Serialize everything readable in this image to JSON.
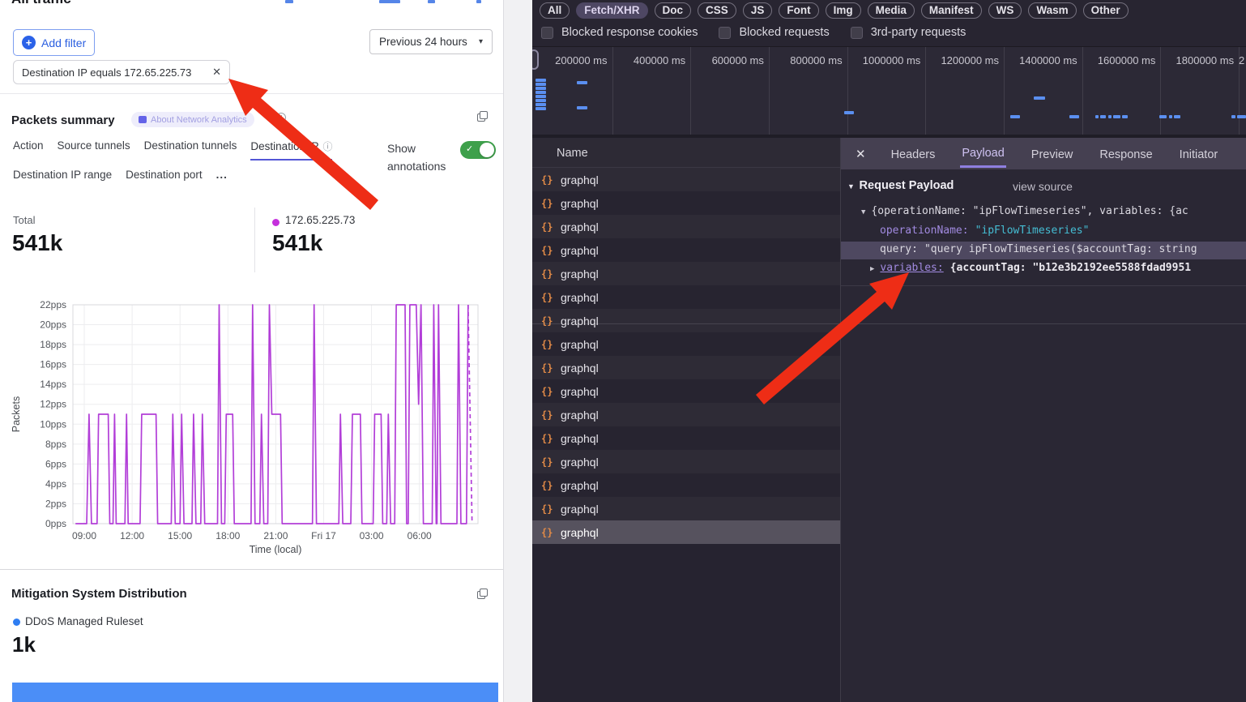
{
  "left": {
    "title": "All traffic",
    "add_filter": "Add filter",
    "time_range": "Previous 24 hours",
    "filter_chip": "Destination IP equals 172.65.225.73",
    "summary": {
      "heading": "Packets summary",
      "badge": "About Network Analytics",
      "tabs_row1": [
        "Action",
        "Source tunnels",
        "Destination tunnels",
        "Destination IP"
      ],
      "tabs_row2": [
        "Destination IP range",
        "Destination port",
        "..."
      ],
      "active_tab": "Destination IP",
      "show_annotations": "Show annotations"
    },
    "stats": {
      "total_label": "Total",
      "total_value": "541k",
      "series_label": "172.65.225.73",
      "series_value": "541k"
    },
    "mitigation": {
      "heading": "Mitigation System Distribution",
      "legend": "DDoS Managed Ruleset",
      "value": "1k"
    }
  },
  "chart_data": [
    {
      "type": "line",
      "title": "Packets summary",
      "ylabel": "Packets",
      "xlabel": "Time (local)",
      "ylim": [
        0,
        22
      ],
      "ytick_step": 2,
      "ytick_suffix": "pps",
      "xticks": [
        {
          "t": 1,
          "label": "09:00"
        },
        {
          "t": 4,
          "label": "12:00"
        },
        {
          "t": 7,
          "label": "15:00"
        },
        {
          "t": 10,
          "label": "18:00"
        },
        {
          "t": 13,
          "label": "21:00"
        },
        {
          "t": 16,
          "label": "Fri 17"
        },
        {
          "t": 19,
          "label": "03:00"
        },
        {
          "t": 22,
          "label": "06:00"
        }
      ],
      "series": [
        {
          "name": "172.65.225.73",
          "total": "541k",
          "color": "#b23ed8",
          "points": [
            [
              0.45,
              0
            ],
            [
              1.15,
              0
            ],
            [
              1.3,
              11
            ],
            [
              1.45,
              0
            ],
            [
              1.8,
              0
            ],
            [
              1.9,
              11
            ],
            [
              2.5,
              11
            ],
            [
              2.6,
              0
            ],
            [
              2.8,
              0
            ],
            [
              2.9,
              11
            ],
            [
              3.0,
              0
            ],
            [
              3.55,
              0
            ],
            [
              3.65,
              11
            ],
            [
              3.75,
              0
            ],
            [
              4.5,
              0
            ],
            [
              4.6,
              11
            ],
            [
              5.5,
              11
            ],
            [
              5.6,
              0
            ],
            [
              6.45,
              0
            ],
            [
              6.55,
              11
            ],
            [
              6.7,
              0
            ],
            [
              7.0,
              0
            ],
            [
              7.1,
              11
            ],
            [
              7.25,
              0
            ],
            [
              7.75,
              0
            ],
            [
              7.85,
              11
            ],
            [
              8.0,
              0
            ],
            [
              8.3,
              0
            ],
            [
              8.4,
              11
            ],
            [
              8.55,
              0
            ],
            [
              9.35,
              0
            ],
            [
              9.45,
              22
            ],
            [
              9.6,
              0
            ],
            [
              9.8,
              0
            ],
            [
              9.9,
              11
            ],
            [
              10.3,
              11
            ],
            [
              10.4,
              0
            ],
            [
              11.45,
              0
            ],
            [
              11.55,
              22
            ],
            [
              11.7,
              0
            ],
            [
              12.0,
              0
            ],
            [
              12.1,
              11
            ],
            [
              12.25,
              0
            ],
            [
              12.5,
              0
            ],
            [
              12.6,
              22
            ],
            [
              12.75,
              11
            ],
            [
              13.3,
              11
            ],
            [
              13.4,
              0
            ],
            [
              15.3,
              0
            ],
            [
              15.4,
              22
            ],
            [
              15.55,
              0
            ],
            [
              16.95,
              0
            ],
            [
              17.05,
              11
            ],
            [
              17.2,
              0
            ],
            [
              17.7,
              0
            ],
            [
              17.8,
              11
            ],
            [
              18.3,
              11
            ],
            [
              18.4,
              0
            ],
            [
              19.1,
              0
            ],
            [
              19.2,
              11
            ],
            [
              19.6,
              11
            ],
            [
              19.7,
              0
            ],
            [
              19.95,
              0
            ],
            [
              20.05,
              11
            ],
            [
              20.2,
              0
            ],
            [
              20.45,
              0
            ],
            [
              20.55,
              22
            ],
            [
              21.1,
              22
            ],
            [
              21.2,
              0
            ],
            [
              21.3,
              0
            ],
            [
              21.4,
              22
            ],
            [
              21.8,
              22
            ],
            [
              21.95,
              12
            ],
            [
              22.1,
              22
            ],
            [
              22.25,
              0
            ],
            [
              22.8,
              0
            ],
            [
              22.9,
              22
            ],
            [
              23.05,
              0
            ],
            [
              23.1,
              0
            ],
            [
              23.2,
              22
            ],
            [
              23.35,
              0
            ],
            [
              24.35,
              0
            ],
            [
              24.45,
              22
            ],
            [
              24.6,
              0
            ],
            [
              24.95,
              0
            ],
            [
              25.05,
              22
            ]
          ],
          "dashed_points": [
            [
              25.05,
              22
            ],
            [
              25.3,
              0
            ]
          ]
        }
      ]
    },
    {
      "type": "bar",
      "title": "Mitigation System Distribution",
      "categories": [
        "DDoS Managed Ruleset"
      ],
      "values": [
        1000
      ],
      "display_values": [
        "1k"
      ],
      "color": "#4b8ef7"
    }
  ],
  "devtools": {
    "filter_pills": [
      "All",
      "Fetch/XHR",
      "Doc",
      "CSS",
      "JS",
      "Font",
      "Img",
      "Media",
      "Manifest",
      "WS",
      "Wasm",
      "Other"
    ],
    "active_pill": "Fetch/XHR",
    "checkboxes": [
      "Blocked response cookies",
      "Blocked requests",
      "3rd-party requests"
    ],
    "timeline_labels": [
      "200000 ms",
      "400000 ms",
      "600000 ms",
      "800000 ms",
      "1000000 ms",
      "1200000 ms",
      "1400000 ms",
      "1600000 ms",
      "1800000 ms"
    ],
    "timeline_overflow_label": "2",
    "waterfall_marks": [
      [
        661,
        97,
        13
      ],
      [
        661,
        102,
        13
      ],
      [
        661,
        107,
        13
      ],
      [
        661,
        112,
        13
      ],
      [
        661,
        117,
        13
      ],
      [
        661,
        122,
        13
      ],
      [
        661,
        127,
        13
      ],
      [
        661,
        132,
        13
      ],
      [
        712,
        100,
        13
      ],
      [
        712,
        131,
        13
      ],
      [
        1042,
        137,
        12
      ],
      [
        1276,
        119,
        14
      ],
      [
        1247,
        142,
        12
      ],
      [
        1320,
        142,
        12
      ],
      [
        1352,
        142,
        4
      ],
      [
        1358,
        142,
        7
      ],
      [
        1368,
        142,
        4
      ],
      [
        1374,
        142,
        9
      ],
      [
        1385,
        142,
        7
      ],
      [
        1431,
        142,
        9
      ],
      [
        1443,
        142,
        4
      ],
      [
        1449,
        142,
        8
      ],
      [
        1520,
        142,
        5
      ],
      [
        1527,
        142,
        11
      ]
    ],
    "name_header": "Name",
    "requests": [
      "graphql",
      "graphql",
      "graphql",
      "graphql",
      "graphql",
      "graphql",
      "graphql",
      "graphql",
      "graphql",
      "graphql",
      "graphql",
      "graphql",
      "graphql",
      "graphql",
      "graphql",
      "graphql"
    ],
    "selected_request_index": 15,
    "detail_tabs": [
      "Headers",
      "Payload",
      "Preview",
      "Response",
      "Initiator"
    ],
    "active_detail_tab": "Payload",
    "payload": {
      "section_title": "Request Payload",
      "view_source": "view source",
      "preview_line": "{operationName: \"ipFlowTimeseries\", variables: {ac",
      "operation_key": "operationName:",
      "operation_value": "\"ipFlowTimeseries\"",
      "query_key": "query:",
      "query_value": "\"query ipFlowTimeseries($accountTag: string",
      "variables_key": "variables:",
      "variables_value": "{accountTag: \"b12e3b2192ee5588fdad9951"
    }
  },
  "glyphs": {
    "plus": "+",
    "caret_down": "▾",
    "close_x": "✕",
    "check": "✓",
    "info": "ⓘ",
    "tri_down": "▼",
    "tri_right": "▶",
    "braces": "{}"
  },
  "annotations": {
    "arrow_color": "#ee2d16",
    "arrows": [
      "467,247 322,121 331,111 282,97 303,143 312,133 457,259",
      "943,499 1092,372 1101,382 1122,336 1073,350 1082,360 933,487"
    ]
  },
  "colors": {
    "accent_blue": "#2b62e8",
    "series_purple": "#b23ed8",
    "legend_purple_dot": "#c530dc",
    "mitigation_blue": "#4b8ef7",
    "toggle_green": "#3ea04b",
    "devtools_bg": "#282531",
    "key_purple": "#a18ae0",
    "string_teal": "#45bdd3",
    "waterfall_blue": "#5b8ff0"
  }
}
